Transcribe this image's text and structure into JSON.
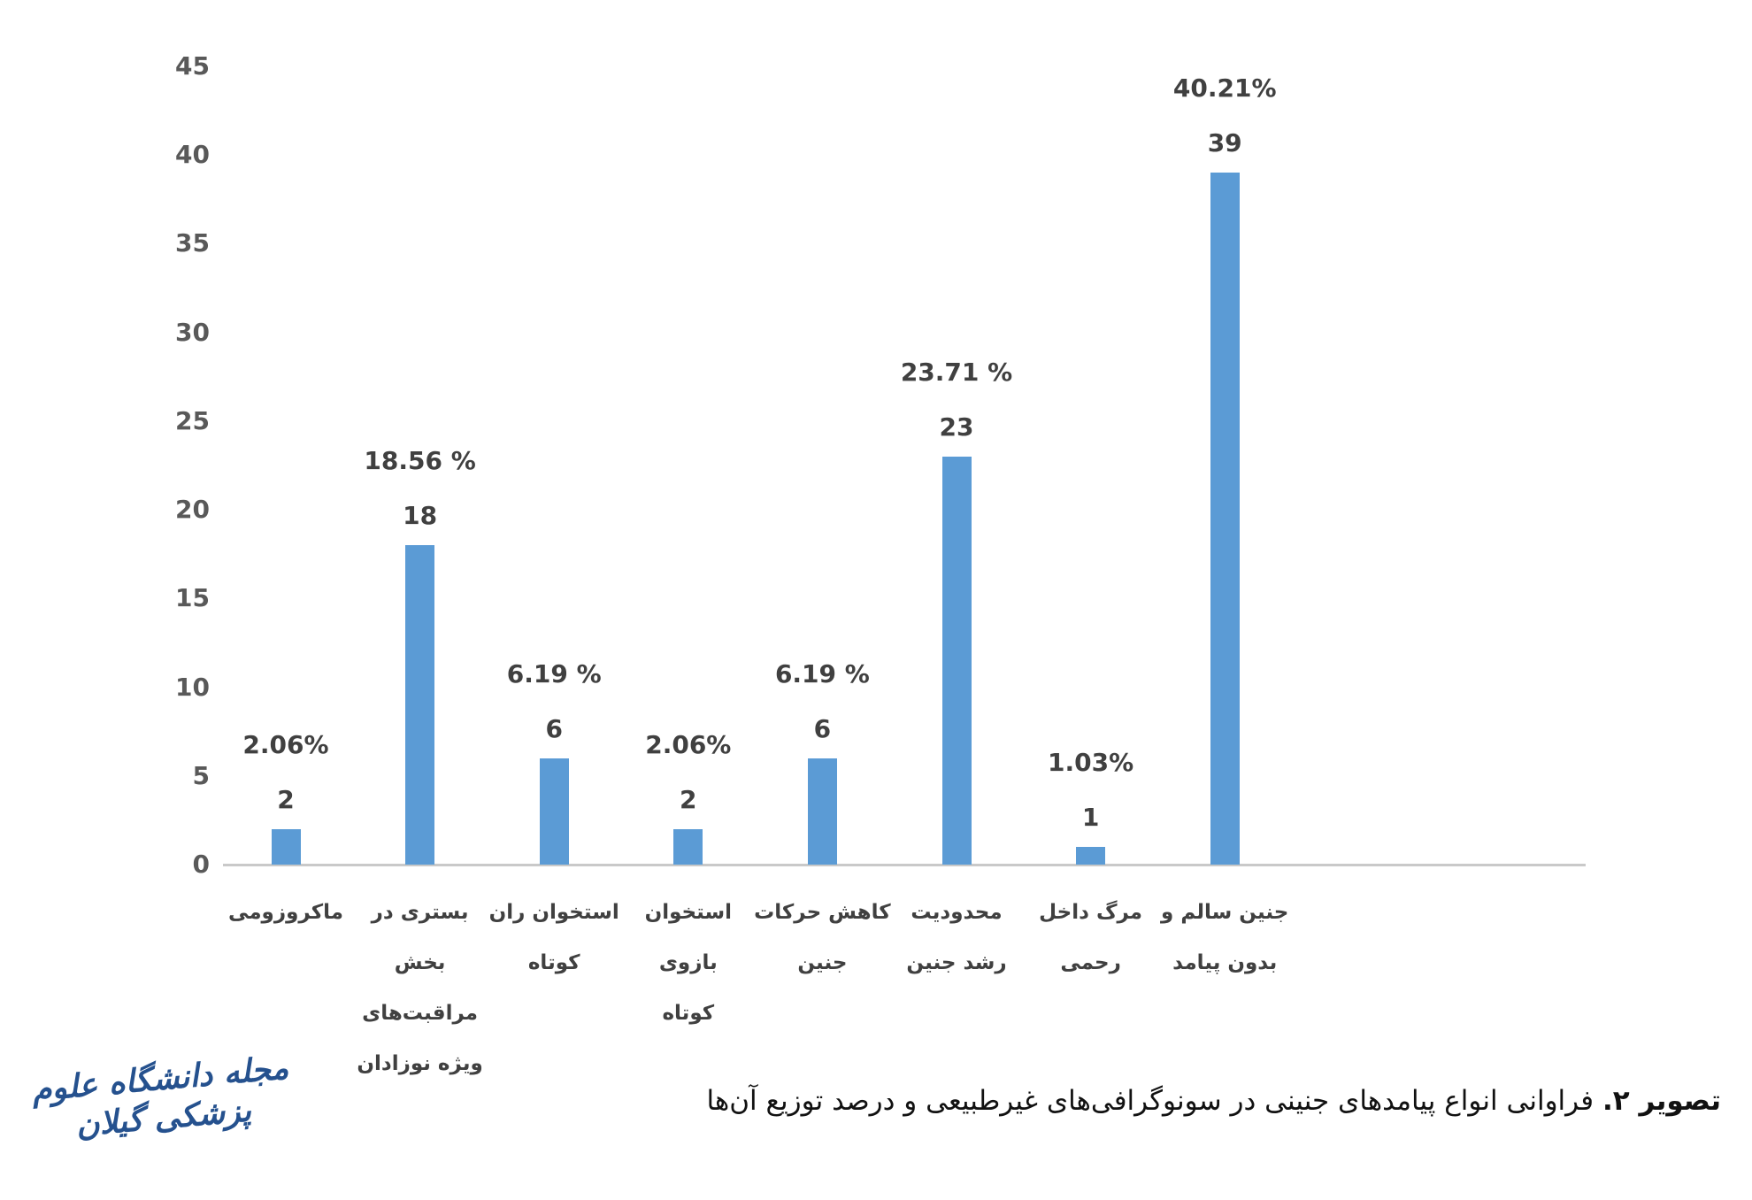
{
  "chart_data": {
    "type": "bar",
    "title": "",
    "xlabel": "",
    "ylabel": "",
    "categories": [
      "ماکروزومی",
      "بستری در بخش مراقبت‌های ویژه نوزادان",
      "استخوان ران کوتاه",
      "استخوان بازوی کوتاه",
      "کاهش حرکات جنین",
      "محدودیت رشد جنین",
      "مرگ داخل رحمی",
      "جنین سالم و بدون پیامد"
    ],
    "categories_display": [
      [
        "ماکروزومی"
      ],
      [
        "بستری در",
        "بخش",
        "مراقبت‌های",
        "ویژه نوزادان"
      ],
      [
        "استخوان ران",
        "کوتاه"
      ],
      [
        "استخوان بازوی",
        "کوتاه"
      ],
      [
        "کاهش حرکات",
        "جنین"
      ],
      [
        "محدودیت",
        "رشد جنین"
      ],
      [
        "مرگ داخل",
        "رحمی"
      ],
      [
        "جنین سالم و",
        "بدون پیامد"
      ]
    ],
    "values": [
      2,
      18,
      6,
      2,
      6,
      23,
      1,
      39
    ],
    "percent_labels": [
      "2.06%",
      "18.56 %",
      "6.19 %",
      "2.06%",
      "6.19 %",
      "23.71 %",
      "1.03%",
      "40.21%"
    ],
    "count_labels": [
      "2",
      "18",
      "6",
      "2",
      "6",
      "23",
      "1",
      "39"
    ],
    "y_ticks": [
      0,
      5,
      10,
      15,
      20,
      25,
      30,
      35,
      40,
      45
    ],
    "ylim": [
      0,
      45
    ],
    "grid": false,
    "legend_position": "none",
    "bar_color": "#5b9bd5",
    "axis_line_color": "#c9c9c9",
    "tick_label_color": "#595959",
    "data_label_color": "#404040"
  },
  "caption": {
    "prefix": "تصویر ۲.",
    "text": "فراوانی انواع پیامدهای جنینی در سونوگرافی‌های غیرطبیعی و درصد توزیع آن‌ها"
  },
  "logo": {
    "text": "مجله دانشگاه علوم پزشکی گیلان",
    "color": "#25518e"
  }
}
